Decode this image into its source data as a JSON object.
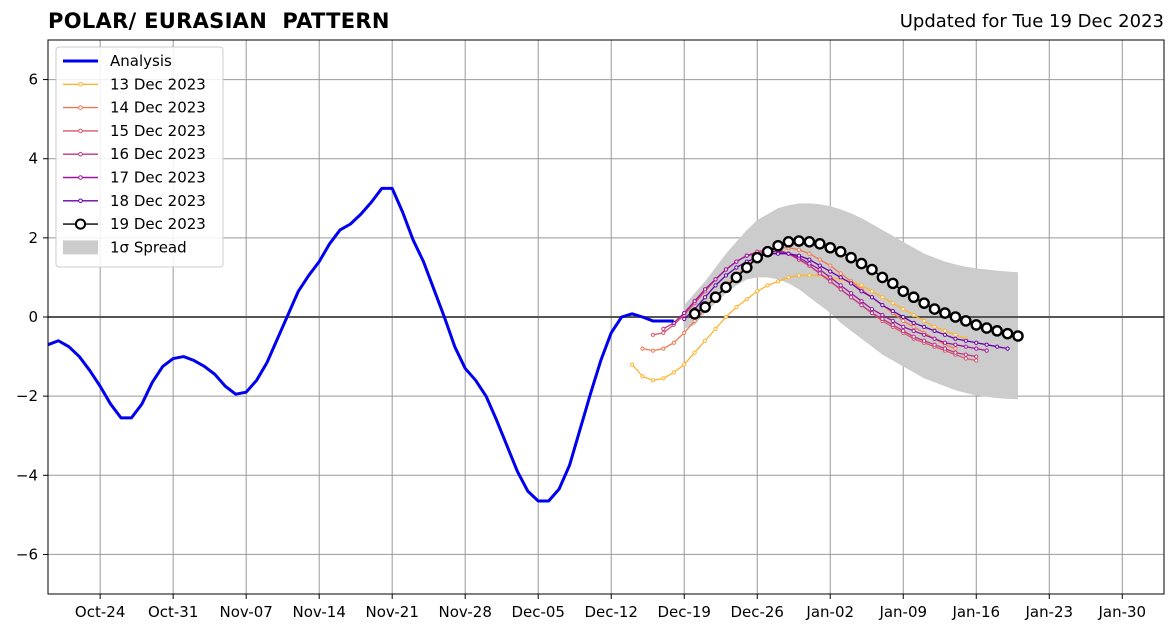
{
  "header": {
    "title": "POLAR/ EURASIAN  PATTERN",
    "updated": "Updated for Tue 19 Dec 2023"
  },
  "colors": {
    "analysis": "#0000ee",
    "spread": "#cccccc",
    "grid": "#999999",
    "zero_line": "#555555",
    "latest_fill": "#ffffff",
    "latest_edge": "#000000"
  },
  "chart_data": {
    "type": "line",
    "title": "POLAR/ EURASIAN  PATTERN",
    "subtitle": "Updated for Tue 19 Dec 2023",
    "xlabel": "",
    "ylabel": "",
    "x_axis": {
      "start": "2023-10-19",
      "end": "2024-02-03"
    },
    "ylim": [
      -7,
      7
    ],
    "yticks": [
      "6",
      "4",
      "2",
      "0",
      "−2",
      "−4",
      "−6"
    ],
    "ytick_values": [
      6,
      4,
      2,
      0,
      -2,
      -4,
      -6
    ],
    "xticks": [
      {
        "label": "Oct-24",
        "date": "2023-10-24"
      },
      {
        "label": "Oct-31",
        "date": "2023-10-31"
      },
      {
        "label": "Nov-07",
        "date": "2023-11-07"
      },
      {
        "label": "Nov-14",
        "date": "2023-11-14"
      },
      {
        "label": "Nov-21",
        "date": "2023-11-21"
      },
      {
        "label": "Nov-28",
        "date": "2023-11-28"
      },
      {
        "label": "Dec-05",
        "date": "2023-12-05"
      },
      {
        "label": "Dec-12",
        "date": "2023-12-12"
      },
      {
        "label": "Dec-19",
        "date": "2023-12-19"
      },
      {
        "label": "Dec-26",
        "date": "2023-12-26"
      },
      {
        "label": "Jan-02",
        "date": "2024-01-02"
      },
      {
        "label": "Jan-09",
        "date": "2024-01-09"
      },
      {
        "label": "Jan-16",
        "date": "2024-01-16"
      },
      {
        "label": "Jan-23",
        "date": "2024-01-23"
      },
      {
        "label": "Jan-30",
        "date": "2024-01-30"
      }
    ],
    "grid": true,
    "legend_position": "top-left",
    "analysis": {
      "name": "Analysis",
      "color": "#0000ee",
      "start_date": "2023-10-19",
      "values": [
        -0.7,
        -0.6,
        -0.75,
        -1.0,
        -1.35,
        -1.75,
        -2.2,
        -2.55,
        -2.55,
        -2.2,
        -1.65,
        -1.25,
        -1.05,
        -1.0,
        -1.1,
        -1.25,
        -1.45,
        -1.75,
        -1.95,
        -1.9,
        -1.6,
        -1.15,
        -0.55,
        0.05,
        0.65,
        1.05,
        1.4,
        1.85,
        2.2,
        2.35,
        2.6,
        2.9,
        3.25,
        3.25,
        2.65,
        1.95,
        1.4,
        0.7,
        0.0,
        -0.75,
        -1.3,
        -1.6,
        -2.0,
        -2.6,
        -3.25,
        -3.9,
        -4.4,
        -4.65,
        -4.65,
        -4.35,
        -3.75,
        -2.85,
        -1.95,
        -1.1,
        -0.4,
        0.0,
        0.08,
        0.0,
        -0.1,
        -0.1,
        -0.1
      ]
    },
    "forecasts": [
      {
        "name": "13 Dec 2023",
        "color": "#fdb42f",
        "start_date": "2023-12-14",
        "values": [
          -1.2,
          -1.5,
          -1.6,
          -1.55,
          -1.4,
          -1.2,
          -0.9,
          -0.6,
          -0.3,
          0.0,
          0.25,
          0.45,
          0.65,
          0.8,
          0.9,
          1.0,
          1.05,
          1.05,
          1.05,
          1.0,
          0.95,
          0.9,
          0.8,
          0.65,
          0.5,
          0.35,
          0.2,
          0.05,
          -0.1,
          -0.25,
          -0.35,
          -0.45,
          -0.55
        ]
      },
      {
        "name": "14 Dec 2023",
        "color": "#ed7953",
        "start_date": "2023-12-15",
        "values": [
          -0.8,
          -0.85,
          -0.8,
          -0.65,
          -0.4,
          -0.1,
          0.2,
          0.5,
          0.8,
          1.05,
          1.3,
          1.5,
          1.65,
          1.75,
          1.75,
          1.7,
          1.6,
          1.45,
          1.3,
          1.1,
          0.9,
          0.7,
          0.5,
          0.3,
          0.1,
          -0.1,
          -0.25,
          -0.4,
          -0.55,
          -0.7,
          -0.8
        ]
      },
      {
        "name": "15 Dec 2023",
        "color": "#d8576b",
        "start_date": "2023-12-16",
        "values": [
          -0.45,
          -0.4,
          -0.2,
          0.05,
          0.35,
          0.65,
          0.95,
          1.2,
          1.4,
          1.55,
          1.65,
          1.7,
          1.7,
          1.6,
          1.45,
          1.3,
          1.1,
          0.9,
          0.7,
          0.5,
          0.3,
          0.1,
          -0.1,
          -0.25,
          -0.4,
          -0.55,
          -0.65,
          -0.75,
          -0.85,
          -0.95,
          -1.05,
          -1.1
        ]
      },
      {
        "name": "16 Dec 2023",
        "color": "#bd3786",
        "start_date": "2023-12-17",
        "values": [
          -0.3,
          -0.15,
          0.1,
          0.4,
          0.7,
          0.95,
          1.2,
          1.4,
          1.55,
          1.65,
          1.7,
          1.7,
          1.6,
          1.45,
          1.3,
          1.1,
          0.9,
          0.7,
          0.5,
          0.3,
          0.1,
          -0.05,
          -0.2,
          -0.35,
          -0.5,
          -0.6,
          -0.7,
          -0.8,
          -0.9,
          -0.95,
          -1.0
        ]
      },
      {
        "name": "17 Dec 2023",
        "color": "#9c179e",
        "start_date": "2023-12-18",
        "values": [
          -0.15,
          0.1,
          0.4,
          0.7,
          0.95,
          1.2,
          1.4,
          1.55,
          1.6,
          1.65,
          1.65,
          1.6,
          1.5,
          1.35,
          1.2,
          1.0,
          0.8,
          0.6,
          0.4,
          0.2,
          0.05,
          -0.1,
          -0.25,
          -0.35,
          -0.45,
          -0.55,
          -0.65,
          -0.7,
          -0.75,
          -0.8,
          -0.85
        ]
      },
      {
        "name": "18 Dec 2023",
        "color": "#6a00a8",
        "start_date": "2023-12-19",
        "values": [
          -0.05,
          0.2,
          0.5,
          0.8,
          1.05,
          1.25,
          1.4,
          1.5,
          1.6,
          1.6,
          1.6,
          1.55,
          1.45,
          1.3,
          1.15,
          1.0,
          0.85,
          0.65,
          0.5,
          0.3,
          0.15,
          0.0,
          -0.15,
          -0.25,
          -0.35,
          -0.45,
          -0.55,
          -0.6,
          -0.65,
          -0.7,
          -0.75,
          -0.8
        ]
      },
      {
        "name": "19 Dec 2023",
        "color": "#000000",
        "start_date": "2023-12-20",
        "values": [
          0.08,
          0.25,
          0.5,
          0.75,
          1.0,
          1.25,
          1.5,
          1.65,
          1.8,
          1.9,
          1.92,
          1.9,
          1.85,
          1.75,
          1.65,
          1.5,
          1.35,
          1.2,
          1.0,
          0.85,
          0.65,
          0.5,
          0.35,
          0.2,
          0.1,
          0.0,
          -0.1,
          -0.2,
          -0.28,
          -0.35,
          -0.42,
          -0.48
        ]
      }
    ],
    "spread": {
      "name": "1σ Spread",
      "color": "#cccccc",
      "start_date": "2023-12-19",
      "upper": [
        0.3,
        0.6,
        0.9,
        1.25,
        1.6,
        1.9,
        2.2,
        2.45,
        2.6,
        2.75,
        2.82,
        2.87,
        2.87,
        2.85,
        2.8,
        2.72,
        2.62,
        2.5,
        2.35,
        2.2,
        2.05,
        1.9,
        1.75,
        1.6,
        1.5,
        1.4,
        1.33,
        1.27,
        1.23,
        1.2,
        1.17,
        1.15,
        1.13
      ],
      "lower": [
        -0.3,
        -0.2,
        0.1,
        0.35,
        0.6,
        0.8,
        0.95,
        1.0,
        1.0,
        0.95,
        0.85,
        0.7,
        0.5,
        0.3,
        0.1,
        -0.15,
        -0.35,
        -0.55,
        -0.75,
        -0.95,
        -1.1,
        -1.25,
        -1.4,
        -1.55,
        -1.65,
        -1.75,
        -1.85,
        -1.92,
        -1.98,
        -2.02,
        -2.05,
        -2.07,
        -2.08
      ]
    }
  }
}
